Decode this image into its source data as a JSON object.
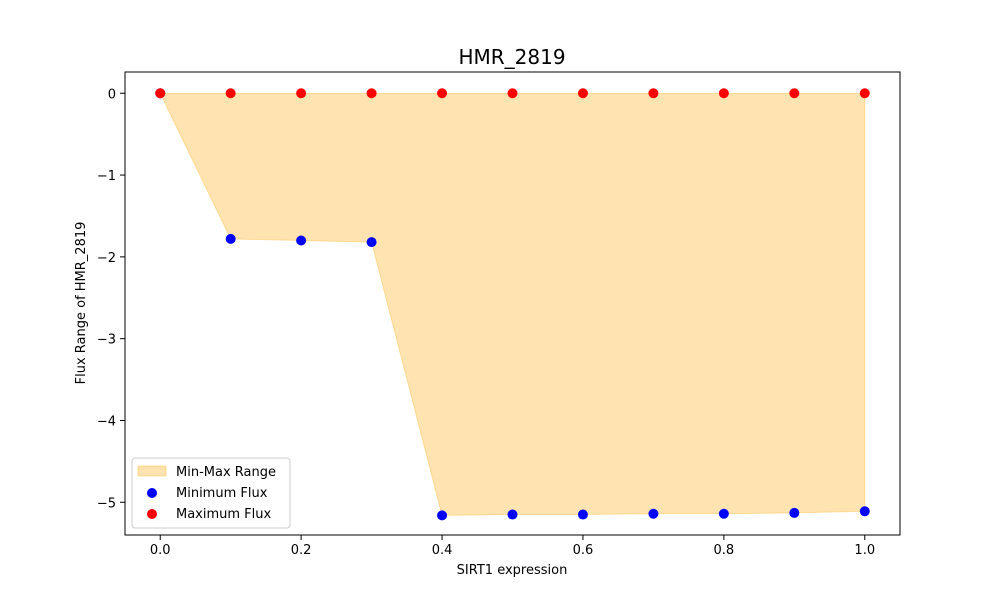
{
  "chart_data": {
    "type": "scatter",
    "title": "HMR_2819",
    "xlabel": "SIRT1 expression",
    "ylabel": "Flux Range of HMR_2819",
    "xlim": [
      -0.05,
      1.05
    ],
    "ylim": [
      -5.4,
      0.26
    ],
    "x_ticks": [
      0.0,
      0.2,
      0.4,
      0.6,
      0.8,
      1.0
    ],
    "x_tick_labels": [
      "0.0",
      "0.2",
      "0.4",
      "0.6",
      "0.8",
      "1.0"
    ],
    "y_ticks": [
      0,
      -1,
      -2,
      -3,
      -4,
      -5
    ],
    "y_tick_labels": [
      "0",
      "−1",
      "−2",
      "−3",
      "−4",
      "−5"
    ],
    "grid": false,
    "legend_position": "lower-left",
    "x": [
      0.0,
      0.1,
      0.2,
      0.3,
      0.4,
      0.5,
      0.6,
      0.7,
      0.8,
      0.9,
      1.0
    ],
    "series": [
      {
        "name": "Min-Max Range",
        "kind": "fill_between",
        "color": "#FFA500",
        "alpha": 0.3
      },
      {
        "name": "Minimum Flux",
        "kind": "scatter",
        "color": "#0000FF",
        "values": [
          0.0,
          -1.78,
          -1.8,
          -1.82,
          -5.16,
          -5.15,
          -5.15,
          -5.14,
          -5.14,
          -5.13,
          -5.11
        ]
      },
      {
        "name": "Maximum Flux",
        "kind": "scatter",
        "color": "#FF0000",
        "values": [
          0,
          0,
          0,
          0,
          0,
          0,
          0,
          0,
          0,
          0,
          0
        ]
      }
    ]
  }
}
